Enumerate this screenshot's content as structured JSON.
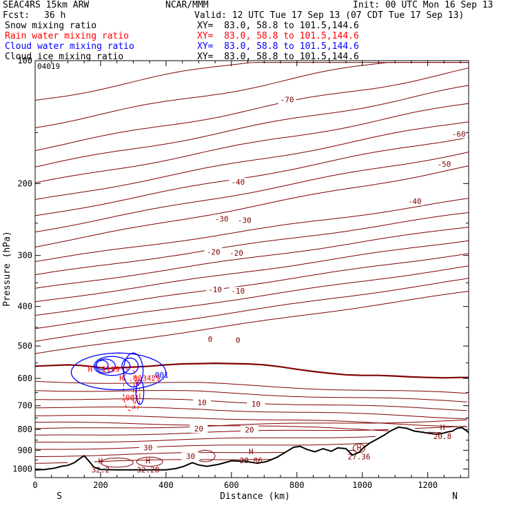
{
  "header": {
    "model": "SEAC4RS 15km ARW",
    "org": "NCAR/MMM",
    "init": "Init: 00 UTC Mon 16 Sep 13",
    "fcst_label": "Fcst:",
    "fcst_value": "36 h",
    "valid": "Valid: 12 UTC Tue 17 Sep 13 (07 CDT Tue 17 Sep 13)"
  },
  "fields": [
    {
      "name": "Snow mixing ratio",
      "xy": "XY=  83.0, 58.8 to 101.5,144.6",
      "color": "#000000"
    },
    {
      "name": "Rain water mixing ratio",
      "xy": "XY=  83.0, 58.8 to 101.5,144.6",
      "color": "#ff0000"
    },
    {
      "name": "Cloud water mixing ratio",
      "xy": "XY=  83.0, 58.8 to 101.5,144.6",
      "color": "#0000ff"
    },
    {
      "name": "Cloud ice mixing ratio",
      "xy": "XY=  83.0, 58.8 to 101.5,144.6",
      "color": "#000000"
    }
  ],
  "stamp": "04019",
  "colors": {
    "temperature": "#800000",
    "zero_isotherm": "#800000",
    "rain": "#ff0000",
    "cloud": "#0000ff",
    "terrain": "#000000"
  },
  "chart_data": {
    "type": "cross-section",
    "xlabel": "Distance (km)",
    "ylabel": "Pressure (hPa)",
    "xlim": [
      0,
      1325
    ],
    "ylim": [
      1050,
      100
    ],
    "y_scale": "log",
    "x_ticks": [
      "0",
      "200",
      "400",
      "600",
      "800",
      "1000",
      "1200"
    ],
    "y_ticks": [
      "100",
      "200",
      "300",
      "400",
      "500",
      "600",
      "700",
      "800",
      "900",
      "1000"
    ],
    "x_endpoints": {
      "left": "S",
      "right": "N"
    },
    "temperature_contour_labels": [
      "-70",
      "-60",
      "-50",
      "-40",
      "-40",
      "-30",
      "-30",
      "-20",
      "-20",
      "-10",
      "-10",
      "0",
      "0",
      "10",
      "10",
      "20",
      "20",
      "30",
      "30"
    ],
    "extrema": [
      {
        "kind": "H",
        "value": "32.2",
        "x_km": 200,
        "p_hPa": 985
      },
      {
        "kind": "H",
        "value": "32.28",
        "x_km": 345,
        "p_hPa": 985
      },
      {
        "kind": "H",
        "value": "29.86",
        "x_km": 660,
        "p_hPa": 935
      },
      {
        "kind": "H",
        "value": "27.36",
        "x_km": 990,
        "p_hPa": 915
      },
      {
        "kind": "H",
        "value": "20.8",
        "x_km": 1245,
        "p_hPa": 815
      }
    ],
    "cloud_water": {
      "center_label": "H .1199",
      "contour_label": ".001"
    },
    "rain_water": {
      "center_label": "H .003429",
      "contour_label": ".001"
    },
    "terrain": {
      "x_km": [
        0,
        30,
        60,
        80,
        100,
        120,
        135,
        150,
        165,
        180,
        200,
        250,
        300,
        350,
        400,
        430,
        455,
        480,
        500,
        525,
        560,
        600,
        640,
        680,
        710,
        740,
        770,
        790,
        810,
        830,
        855,
        880,
        905,
        925,
        950,
        970,
        990,
        1005,
        1025,
        1045,
        1065,
        1085,
        1110,
        1135,
        1160,
        1180,
        1205,
        1225,
        1245,
        1260,
        1275,
        1290,
        1305,
        1320,
        1325
      ],
      "p_hPa": [
        1005,
        1003,
        995,
        985,
        980,
        965,
        945,
        928,
        958,
        990,
        1003,
        1005,
        1005,
        1005,
        1005,
        998,
        985,
        965,
        978,
        985,
        975,
        955,
        958,
        968,
        958,
        935,
        905,
        885,
        880,
        895,
        908,
        892,
        905,
        888,
        892,
        925,
        910,
        885,
        862,
        845,
        828,
        808,
        790,
        795,
        808,
        812,
        818,
        822,
        818,
        812,
        808,
        795,
        792,
        808,
        815
      ]
    },
    "zero_isotherm": {
      "x_km": [
        0,
        50,
        100,
        140,
        180,
        220,
        260,
        300,
        350,
        400,
        450,
        500,
        550,
        600,
        650,
        700,
        750,
        800,
        850,
        900,
        950,
        1000,
        1050,
        1100,
        1150,
        1200,
        1250,
        1300,
        1325
      ],
      "p_hPa": [
        560,
        558,
        556,
        558,
        562,
        568,
        565,
        563,
        560,
        556,
        553,
        552,
        551,
        552,
        553,
        556,
        562,
        570,
        577,
        583,
        588,
        590,
        590,
        592,
        595,
        597,
        598,
        597,
        597
      ]
    }
  }
}
